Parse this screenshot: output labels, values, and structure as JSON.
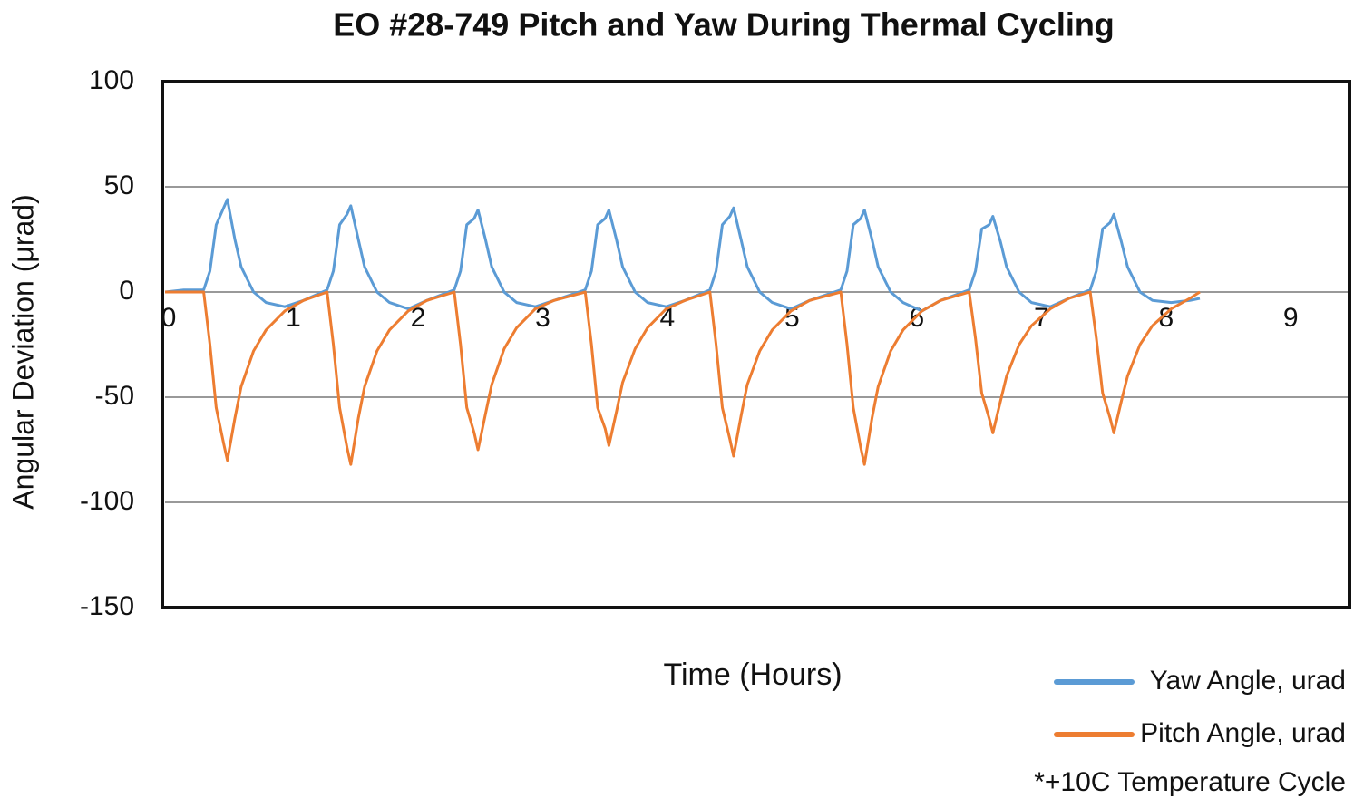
{
  "chart_data": {
    "type": "line",
    "title": "EO #28-749 Pitch and Yaw During Thermal Cycling",
    "x_label": "Time (Hours)",
    "y_label": "Angular Deviation (μrad)",
    "note": "*+10C Temperature Cycle",
    "x": [
      0,
      0.15,
      0.31,
      0.36,
      0.41,
      0.47,
      0.5,
      0.56,
      0.61,
      0.71,
      0.81,
      0.96,
      1.11,
      1.3,
      1.35,
      1.4,
      1.46,
      1.49,
      1.55,
      1.6,
      1.7,
      1.8,
      1.95,
      2.1,
      2.32,
      2.37,
      2.42,
      2.48,
      2.51,
      2.57,
      2.62,
      2.72,
      2.82,
      2.97,
      3.12,
      3.37,
      3.42,
      3.47,
      3.53,
      3.56,
      3.62,
      3.67,
      3.77,
      3.87,
      4.02,
      4.17,
      4.37,
      4.42,
      4.47,
      4.53,
      4.56,
      4.62,
      4.67,
      4.77,
      4.87,
      5.02,
      5.17,
      5.42,
      5.47,
      5.52,
      5.58,
      5.61,
      5.67,
      5.72,
      5.82,
      5.92,
      6.07,
      6.22,
      6.45,
      6.5,
      6.55,
      6.61,
      6.64,
      6.7,
      6.75,
      6.85,
      6.95,
      7.1,
      7.25,
      7.42,
      7.47,
      7.52,
      7.58,
      7.61,
      7.67,
      7.72,
      7.82,
      7.92,
      8.07,
      8.22,
      8.3
    ],
    "series": [
      {
        "name": "Yaw Angle, urad",
        "color": "#5b9bd5",
        "values": [
          0,
          1,
          1,
          10,
          32,
          40,
          44,
          25,
          12,
          0,
          -5,
          -7,
          -4,
          1,
          10,
          32,
          37,
          41,
          25,
          12,
          0,
          -5,
          -8,
          -4,
          1,
          10,
          32,
          35,
          39,
          25,
          12,
          0,
          -5,
          -7,
          -4,
          1,
          10,
          32,
          35,
          39,
          25,
          12,
          0,
          -5,
          -7,
          -4,
          1,
          10,
          32,
          36,
          40,
          25,
          12,
          0,
          -5,
          -8,
          -4,
          1,
          10,
          32,
          35,
          39,
          25,
          12,
          0,
          -5,
          -9,
          -4,
          1,
          10,
          30,
          32,
          36,
          24,
          12,
          0,
          -5,
          -7,
          -3,
          1,
          10,
          30,
          33,
          37,
          24,
          12,
          0,
          -4,
          -5,
          -4,
          -3
        ]
      },
      {
        "name": "Pitch Angle, urad",
        "color": "#ed7d31",
        "values": [
          0,
          0,
          0,
          -25,
          -55,
          -72,
          -80,
          -60,
          -45,
          -28,
          -18,
          -9,
          -4,
          0,
          -25,
          -55,
          -74,
          -82,
          -60,
          -45,
          -28,
          -18,
          -9,
          -4,
          0,
          -25,
          -55,
          -67,
          -75,
          -58,
          -44,
          -27,
          -17,
          -8,
          -4,
          0,
          -25,
          -55,
          -65,
          -73,
          -57,
          -43,
          -27,
          -17,
          -8,
          -4,
          0,
          -25,
          -55,
          -70,
          -78,
          -59,
          -44,
          -28,
          -18,
          -9,
          -4,
          0,
          -25,
          -55,
          -74,
          -82,
          -60,
          -45,
          -28,
          -18,
          -9,
          -4,
          0,
          -22,
          -48,
          -60,
          -67,
          -52,
          -40,
          -25,
          -16,
          -8,
          -3,
          0,
          -22,
          -48,
          -60,
          -67,
          -52,
          -40,
          -25,
          -16,
          -8,
          -3,
          0
        ]
      }
    ],
    "xlim": [
      0,
      9.5
    ],
    "xticks": [
      0,
      1,
      2,
      3,
      4,
      5,
      6,
      7,
      8,
      9
    ],
    "ylim": [
      -150,
      100
    ],
    "yticks": [
      100,
      50,
      0,
      -50,
      -100,
      -150
    ],
    "grid": true
  }
}
